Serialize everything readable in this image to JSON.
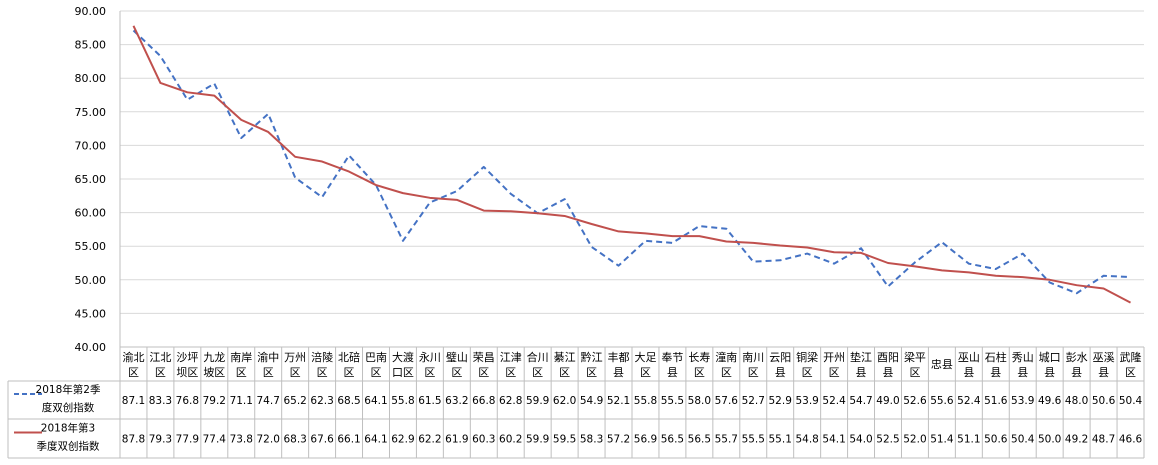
{
  "chart_data": {
    "type": "line",
    "ylim": [
      40,
      90
    ],
    "yticks": [
      "40.00",
      "45.00",
      "50.00",
      "55.00",
      "60.00",
      "65.00",
      "70.00",
      "75.00",
      "80.00",
      "85.00",
      "90.00"
    ],
    "grid": true,
    "legend_position": "left table",
    "categories": [
      [
        "渝北",
        "区"
      ],
      [
        "江北",
        "区"
      ],
      [
        "沙坪",
        "坝区"
      ],
      [
        "九龙",
        "坡区"
      ],
      [
        "南岸",
        "区"
      ],
      [
        "渝中",
        "区"
      ],
      [
        "万州",
        "区"
      ],
      [
        "涪陵",
        "区"
      ],
      [
        "北碚",
        "区"
      ],
      [
        "巴南",
        "区"
      ],
      [
        "大渡",
        "口区"
      ],
      [
        "永川",
        "区"
      ],
      [
        "璧山",
        "区"
      ],
      [
        "荣昌",
        "区"
      ],
      [
        "江津",
        "区"
      ],
      [
        "合川",
        "区"
      ],
      [
        "綦江",
        "区"
      ],
      [
        "黔江",
        "区"
      ],
      [
        "丰都",
        "县"
      ],
      [
        "大足",
        "区"
      ],
      [
        "奉节",
        "县"
      ],
      [
        "长寿",
        "区"
      ],
      [
        "潼南",
        "区"
      ],
      [
        "南川",
        "区"
      ],
      [
        "云阳",
        "县"
      ],
      [
        "铜梁",
        "区"
      ],
      [
        "开州",
        "区"
      ],
      [
        "垫江",
        "县"
      ],
      [
        "酉阳",
        "县"
      ],
      [
        "梁平",
        "区"
      ],
      [
        "忠县"
      ],
      [
        "巫山",
        "县"
      ],
      [
        "石柱",
        "县"
      ],
      [
        "秀山",
        "县"
      ],
      [
        "城口",
        "县"
      ],
      [
        "彭水",
        "县"
      ],
      [
        "巫溪",
        "县"
      ],
      [
        "武隆",
        "区"
      ]
    ],
    "series": [
      {
        "name": [
          "2018年第2季",
          "度双创指数"
        ],
        "color": "#4472C4",
        "dash": true,
        "values": [
          87.1,
          83.3,
          76.8,
          79.2,
          71.1,
          74.7,
          65.2,
          62.3,
          68.5,
          64.1,
          55.8,
          61.5,
          63.2,
          66.8,
          62.8,
          59.9,
          62.0,
          54.9,
          52.1,
          55.8,
          55.5,
          58.0,
          57.6,
          52.7,
          52.9,
          53.9,
          52.4,
          54.7,
          49.0,
          52.6,
          55.6,
          52.4,
          51.6,
          53.9,
          49.6,
          48.0,
          50.6,
          50.4
        ],
        "labels": [
          "87.1",
          "83.3",
          "76.8",
          "79.2",
          "71.1",
          "74.7",
          "65.2",
          "62.3",
          "68.5",
          "64.1",
          "55.8",
          "61.5",
          "63.2",
          "66.8",
          "62.8",
          "59.9",
          "62.0",
          "54.9",
          "52.1",
          "55.8",
          "55.5",
          "58.0",
          "57.6",
          "52.7",
          "52.9",
          "53.9",
          "52.4",
          "54.7",
          "49.0",
          "52.6",
          "55.6",
          "52.4",
          "51.6",
          "53.9",
          "49.6",
          "48.0",
          "50.6",
          "50.4"
        ]
      },
      {
        "name": [
          "2018年第3",
          "季度双创指数"
        ],
        "color": "#C0504D",
        "dash": false,
        "values": [
          87.8,
          79.3,
          77.9,
          77.4,
          73.8,
          72.0,
          68.3,
          67.6,
          66.1,
          64.1,
          62.9,
          62.2,
          61.9,
          60.3,
          60.2,
          59.9,
          59.5,
          58.3,
          57.2,
          56.9,
          56.5,
          56.5,
          55.7,
          55.5,
          55.1,
          54.8,
          54.1,
          54.0,
          52.5,
          52.0,
          51.4,
          51.1,
          50.6,
          50.4,
          50.0,
          49.2,
          48.7,
          46.6
        ],
        "labels": [
          "87.8",
          "79.3",
          "77.9",
          "77.4",
          "73.8",
          "72.0",
          "68.3",
          "67.6",
          "66.1",
          "64.1",
          "62.9",
          "62.2",
          "61.9",
          "60.3",
          "60.2",
          "59.9",
          "59.5",
          "58.3",
          "57.2",
          "56.9",
          "56.5",
          "56.5",
          "55.7",
          "55.5",
          "55.1",
          "54.8",
          "54.1",
          "54.0",
          "52.5",
          "52.0",
          "51.4",
          "51.1",
          "50.6",
          "50.4",
          "50.0",
          "49.2",
          "48.7",
          "46.6"
        ]
      }
    ]
  }
}
